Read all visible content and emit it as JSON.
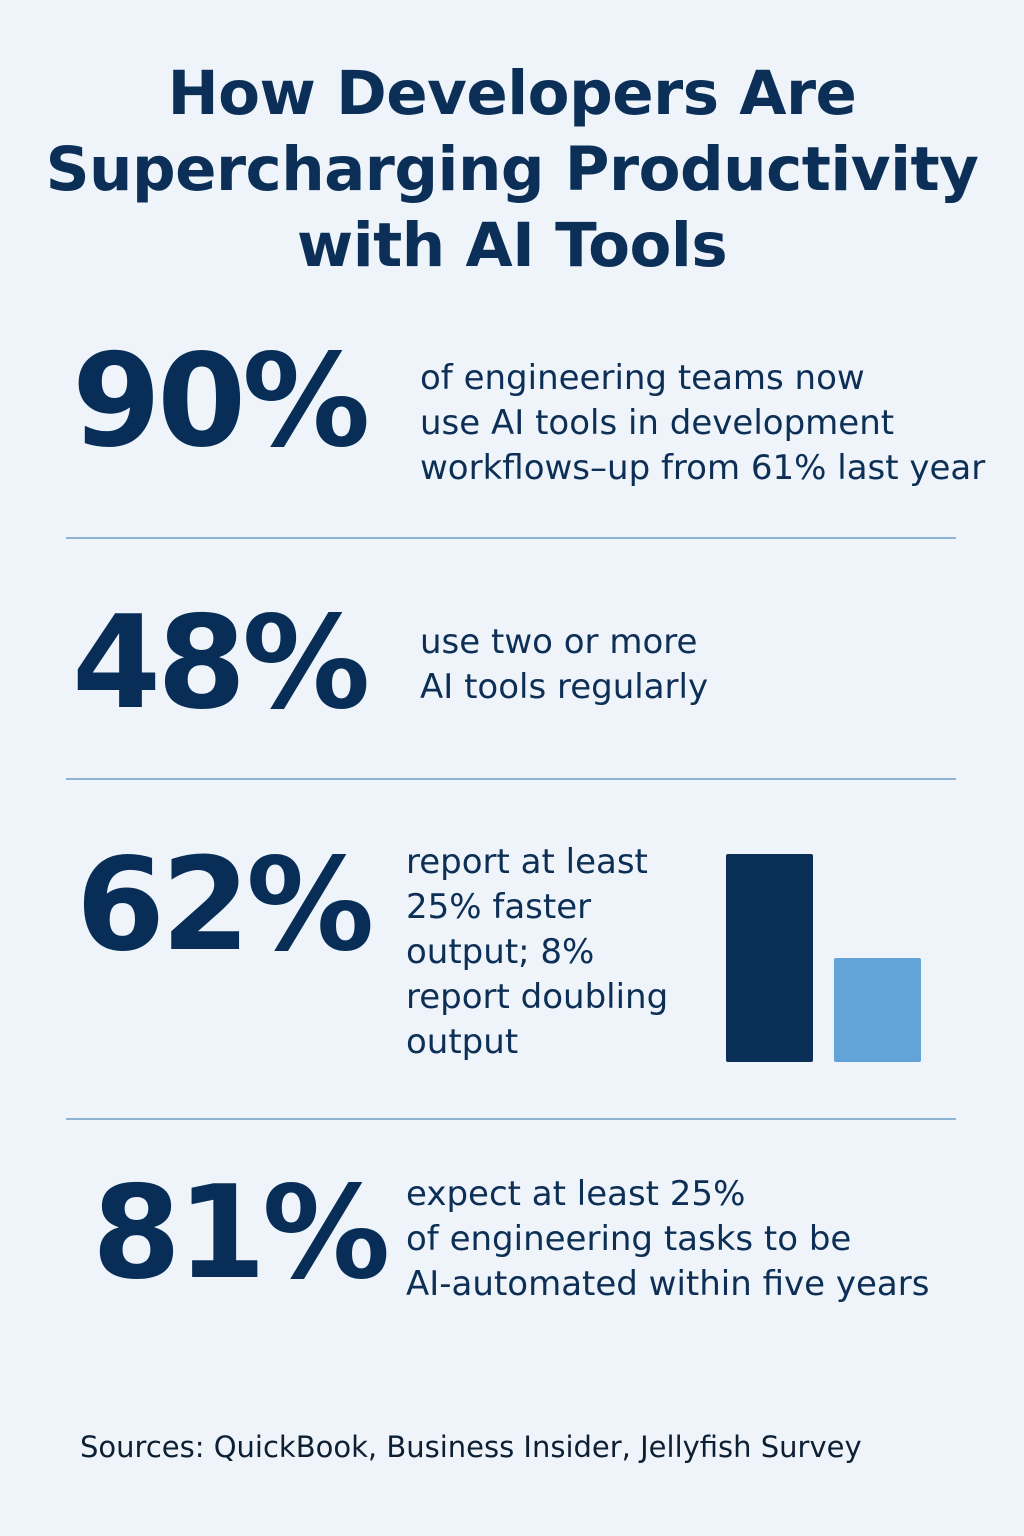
{
  "title": {
    "lines": [
      "How Developers Are",
      "Supercharging Productivity",
      "with AI Tools"
    ]
  },
  "stats": [
    {
      "value": "90%",
      "description_lines": [
        "of engineering teams now",
        "use AI tools in development",
        "workflows–up from 61% last year"
      ]
    },
    {
      "value": "48%",
      "description_lines": [
        "use two or more",
        "AI tools regularly"
      ]
    },
    {
      "value": "62%",
      "description_lines": [
        "report at least",
        "25% faster",
        "output; 8%",
        "report doubling",
        "output"
      ]
    },
    {
      "value": "81%",
      "description_lines": [
        "expect at least 25%",
        "of engineering tasks to be",
        "AI-automated within five years"
      ]
    }
  ],
  "chart_data": {
    "type": "bar",
    "series": [
      {
        "values": [
          62,
          31
        ]
      }
    ],
    "colors": [
      "#0a3057",
      "#62a4d7"
    ],
    "grid": false
  },
  "sources": "Sources: QuickBook, Business Insider, Jellyfish Survey",
  "colors": {
    "background": "#eef4fa",
    "text": "#0b2f57",
    "divider": "#8cb3d3"
  }
}
